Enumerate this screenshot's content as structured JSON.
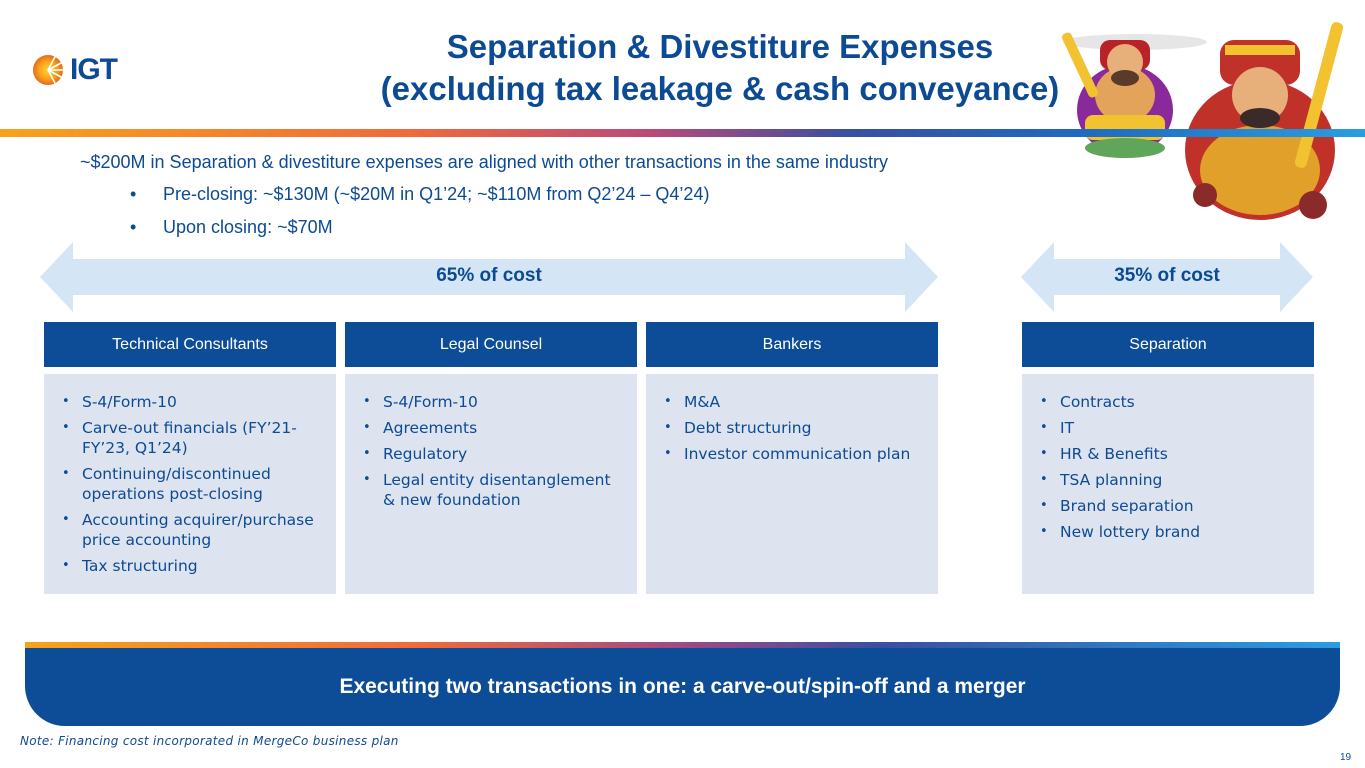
{
  "logo": {
    "text": "IGT"
  },
  "title": {
    "line1": "Separation & Divestiture Expenses",
    "line2": "(excluding tax leakage & cash conveyance)"
  },
  "intro": {
    "main": "~$200M in Separation & divestiture expenses are aligned with other transactions in the same industry",
    "bullets": [
      "Pre-closing: ~$130M (~$20M in Q1’24; ~$110M from Q2’24 – Q4’24)",
      "Upon closing: ~$70M"
    ]
  },
  "arrows": {
    "left_label": "65% of cost",
    "right_label": "35% of cost"
  },
  "columns": [
    {
      "header": "Technical Consultants",
      "items": [
        "S-4/Form-10",
        "Carve-out financials (FY’21-FY’23, Q1’24)",
        "Continuing/discontinued operations post-closing",
        "Accounting acquirer/purchase price accounting",
        "Tax structuring"
      ]
    },
    {
      "header": "Legal Counsel",
      "items": [
        "S-4/Form-10",
        "Agreements",
        "Regulatory",
        "Legal entity disentanglement & new foundation"
      ]
    },
    {
      "header": "Bankers",
      "items": [
        "M&A",
        "Debt structuring",
        "Investor communication plan"
      ]
    },
    {
      "header": "Separation",
      "items": [
        "Contracts",
        "IT",
        "HR & Benefits",
        "TSA planning",
        "Brand separation",
        "New lottery brand"
      ]
    }
  ],
  "banner": {
    "text": "Executing two transactions in one: a carve-out/spin-off and a merger"
  },
  "note": "Note: Financing cost incorporated in MergeCo business plan",
  "page_number": "19",
  "colors": {
    "brand_blue": "#0d4c96",
    "panel_bg": "#dde4ef",
    "arrow_fill": "#d4e6f5"
  },
  "icons": {
    "logo_mark": "igt-sun-logo-icon",
    "art": "fortune-gods-illustration"
  }
}
